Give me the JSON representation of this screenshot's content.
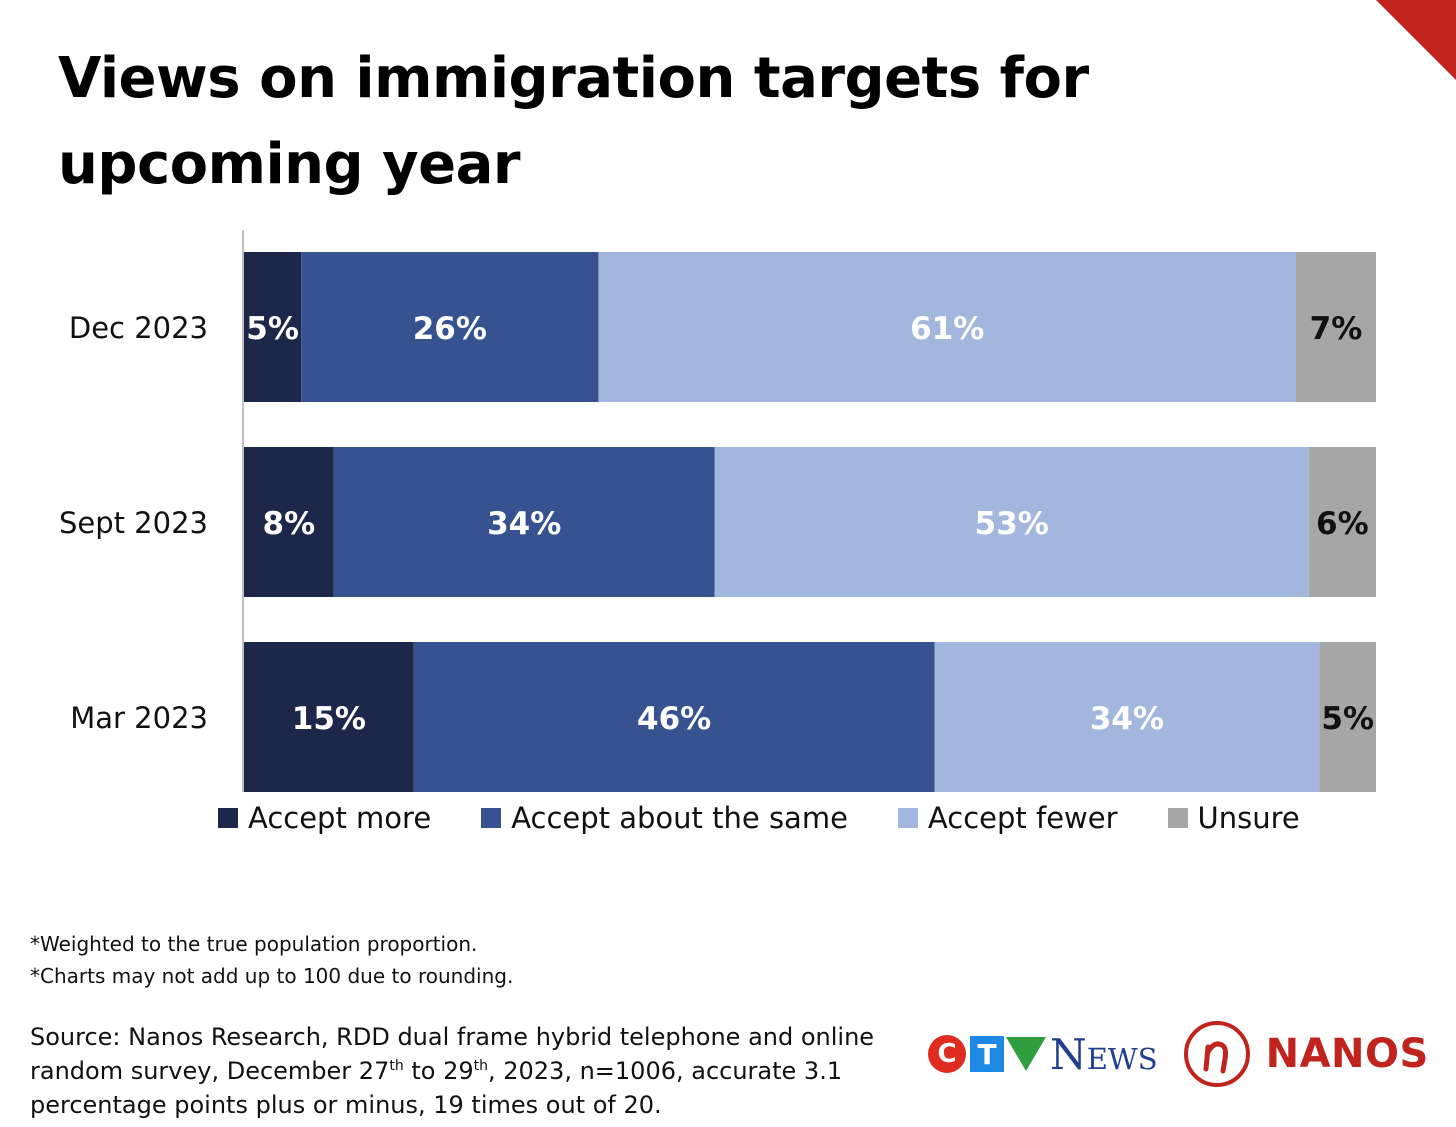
{
  "page": {
    "title": "Views on immigration targets for upcoming year",
    "notes": [
      "*Weighted to the true population proportion.",
      "*Charts may not add up to 100 due to rounding."
    ],
    "source": {
      "part1": "Source: Nanos Research, RDD dual frame hybrid  telephone and online random survey, December 27",
      "sup1": "th",
      "part2": " to 29",
      "sup2": "th",
      "part3": ", 2023, n=1006, accurate 3.1 percentage points plus or minus, 19 times out of 20."
    },
    "logos": {
      "ctv_c": "C",
      "ctv_t": "T",
      "ctv_news": "News",
      "nanos": "NANOS",
      "accent_color": "#c0241c"
    }
  },
  "chart_data": {
    "type": "bar",
    "orientation": "horizontal",
    "stacked": true,
    "categories": [
      "Dec 2023",
      "Sept 2023",
      "Mar 2023"
    ],
    "series": [
      {
        "name": "Accept more",
        "values": [
          5,
          8,
          15
        ],
        "labels": [
          "5%",
          "8%",
          "15%"
        ],
        "color": "#1c2749",
        "label_color": "#ffffff"
      },
      {
        "name": "Accept about the same",
        "values": [
          26,
          34,
          46
        ],
        "labels": [
          "26%",
          "34%",
          "46%"
        ],
        "color": "#365291",
        "label_color": "#ffffff"
      },
      {
        "name": "Accept fewer",
        "values": [
          61,
          53,
          34
        ],
        "labels": [
          "61%",
          "53%",
          "34%"
        ],
        "color": "#a3b7de",
        "label_color": "#ffffff"
      },
      {
        "name": "Unsure",
        "values": [
          7,
          6,
          5
        ],
        "labels": [
          "7%",
          "6%",
          "5%"
        ],
        "color": "#a6a6a6",
        "label_color": "#111111"
      }
    ],
    "legend_position": "bottom",
    "grid": false
  }
}
